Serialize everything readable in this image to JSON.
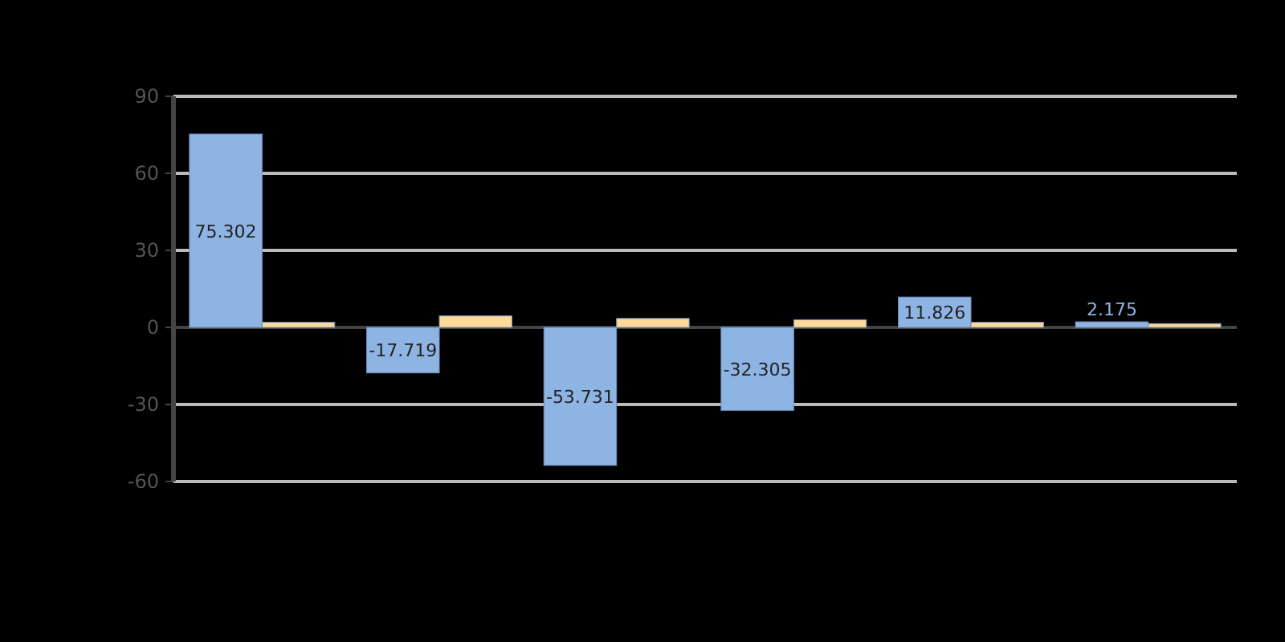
{
  "chart_data": {
    "type": "bar",
    "categories": [
      null,
      null,
      null,
      null,
      null,
      null
    ],
    "series": [
      {
        "color": "#8eb4e3",
        "values": [
          75.302,
          -17.719,
          -53.731,
          -32.305,
          11.826,
          2.175
        ],
        "value_labels": [
          "75.302",
          "-17.719",
          "-53.731",
          "-32.305",
          "11.826",
          "2.175"
        ]
      },
      {
        "color": "#fcd998",
        "values": [
          2,
          4.5,
          3.5,
          3,
          2,
          1.5
        ]
      }
    ],
    "ylim": [
      -60,
      90
    ],
    "yticks": [
      -60,
      -30,
      0,
      30,
      60,
      90
    ],
    "grid": "y"
  }
}
